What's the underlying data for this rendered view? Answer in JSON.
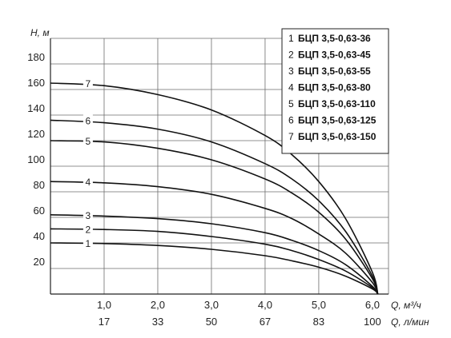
{
  "chart_data": {
    "type": "line",
    "ylabel": "Н, м",
    "xlabel": "Q, м³/ч",
    "xlabel2": "Q, л/мин",
    "xlim": [
      0,
      6.3
    ],
    "ylim": [
      0,
      200
    ],
    "x_ticks": [
      {
        "x": 1.0,
        "label": "1,0",
        "label2": "17"
      },
      {
        "x": 2.0,
        "label": "2,0",
        "label2": "33"
      },
      {
        "x": 3.0,
        "label": "3,0",
        "label2": "50"
      },
      {
        "x": 4.0,
        "label": "4,0",
        "label2": "67"
      },
      {
        "x": 5.0,
        "label": "5,0",
        "label2": "83"
      },
      {
        "x": 6.0,
        "label": "6,0",
        "label2": "100"
      }
    ],
    "y_ticks": [
      {
        "y": 20,
        "label": "20"
      },
      {
        "y": 40,
        "label": "40"
      },
      {
        "y": 60,
        "label": "60"
      },
      {
        "y": 80,
        "label": "80"
      },
      {
        "y": 100,
        "label": "100"
      },
      {
        "y": 120,
        "label": "120"
      },
      {
        "y": 140,
        "label": "140"
      },
      {
        "y": 160,
        "label": "160"
      },
      {
        "y": 180,
        "label": "180"
      }
    ],
    "grid": true,
    "legend_placement": "top-right",
    "series": [
      {
        "id": "1",
        "name": "БЦП 3,5-0,63-36",
        "x": [
          0,
          1,
          2,
          3,
          4,
          4.5,
          5,
          5.5,
          6.0,
          6.1
        ],
        "y": [
          40,
          39.5,
          38,
          35,
          30,
          26,
          21,
          14,
          4,
          0
        ]
      },
      {
        "id": "2",
        "name": "БЦП 3,5-0,63-45",
        "x": [
          0,
          1,
          2,
          3,
          4,
          4.5,
          5,
          5.5,
          6.0,
          6.1
        ],
        "y": [
          51,
          50.5,
          49,
          45,
          39,
          34,
          27,
          18,
          5,
          0
        ]
      },
      {
        "id": "3",
        "name": "БЦП 3,5-0,63-55",
        "x": [
          0,
          1,
          2,
          3,
          4,
          4.5,
          5,
          5.5,
          6.0,
          6.1
        ],
        "y": [
          62,
          61,
          59,
          55,
          48,
          42,
          34,
          23,
          6,
          0
        ]
      },
      {
        "id": "4",
        "name": "БЦП 3,5-0,63-80",
        "x": [
          0,
          1,
          2,
          3,
          4,
          4.5,
          5,
          5.5,
          6.0,
          6.1
        ],
        "y": [
          88,
          87,
          84,
          78,
          67,
          59,
          47,
          32,
          9,
          0
        ]
      },
      {
        "id": "5",
        "name": "БЦП 3,5-0,63-110",
        "x": [
          0,
          1,
          2,
          3,
          4,
          4.5,
          5,
          5.5,
          6.0,
          6.1
        ],
        "y": [
          120,
          119,
          114,
          105,
          90,
          79,
          64,
          43,
          12,
          0
        ]
      },
      {
        "id": "6",
        "name": "БЦП 3,5-0,63-125",
        "x": [
          0,
          1,
          2,
          3,
          4,
          4.5,
          5,
          5.5,
          6.0,
          6.1
        ],
        "y": [
          136,
          134,
          129,
          119,
          102,
          90,
          73,
          49,
          14,
          0
        ]
      },
      {
        "id": "7",
        "name": "БЦП 3,5-0,63-150",
        "x": [
          0,
          1,
          2,
          3,
          4,
          4.5,
          5,
          5.5,
          6.0,
          6.1
        ],
        "y": [
          165,
          163,
          156,
          144,
          124,
          109,
          88,
          59,
          17,
          0
        ]
      }
    ],
    "curve_label_x": 0.7
  }
}
